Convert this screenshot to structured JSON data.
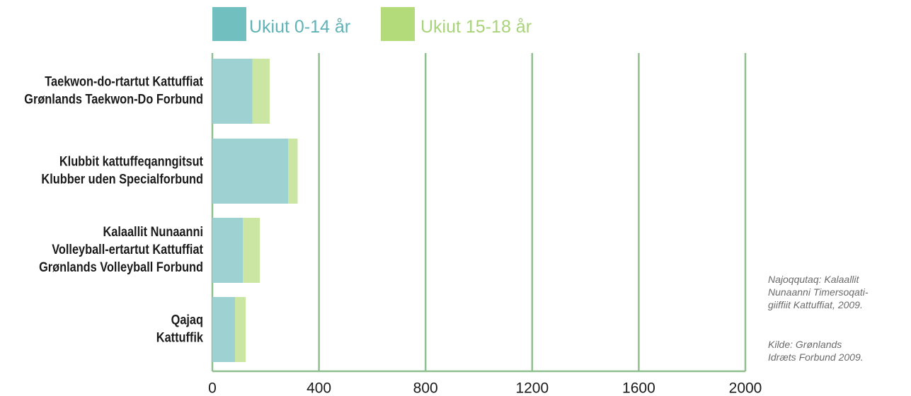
{
  "chart_data": {
    "type": "bar",
    "orientation": "horizontal",
    "stacked": true,
    "categories": [
      [
        "Taekwon-do-rtartut Kattuffiat",
        "Grønlands Taekwon-Do Forbund"
      ],
      [
        "Klubbit kattuffeqanngitsut",
        "Klubber uden Specialforbund"
      ],
      [
        "Kalaallit Nunaanni",
        "Volleyball-ertartut Kattuffiat",
        "Grønlands Volleyball Forbund"
      ],
      [
        "Qajaq",
        "Kattuffik"
      ]
    ],
    "series": [
      {
        "name": "Ukiut 0-14 år",
        "values": [
          150,
          285,
          115,
          85
        ],
        "color": "#9ed1d2"
      },
      {
        "name": "Ukiut 15-18 år",
        "values": [
          65,
          35,
          63,
          40
        ],
        "color": "#cbe6a3"
      }
    ],
    "legend_swatch_colors": [
      "#72bfc0",
      "#b3db7a"
    ],
    "legend_text_colors": [
      "#5fb3b6",
      "#a8d37a"
    ],
    "legend_position": "top",
    "xlim": [
      0,
      2000
    ],
    "xticks": [
      "0",
      "400",
      "800",
      "1200",
      "1600",
      "2000"
    ],
    "x_gridlines": true,
    "grid_color": "#8fbf8f"
  },
  "notes": {
    "kalaallisut": "Najoqqutaq: Kalaallit\nNunaanni Timersoqati-\ngiiffiit Kattuffiat, 2009.",
    "danish": "Kilde: Grønlands\nIdræts Forbund 2009."
  }
}
